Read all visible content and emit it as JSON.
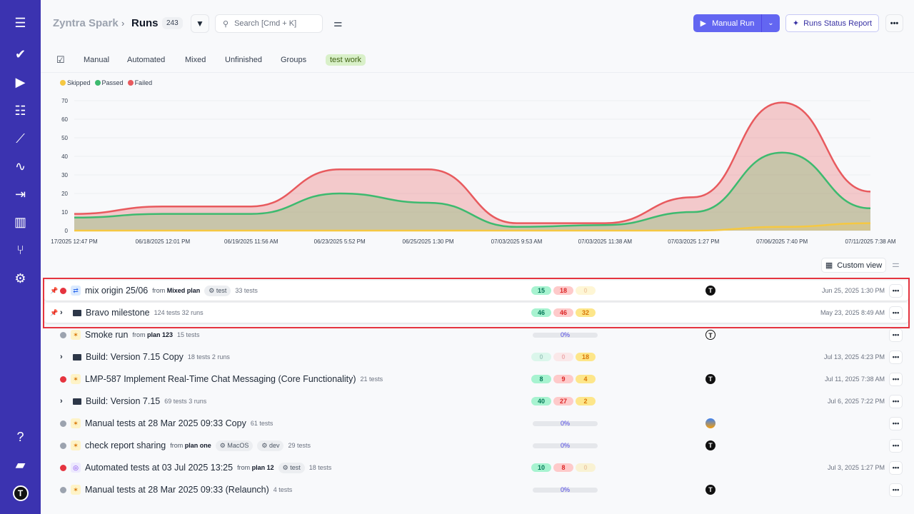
{
  "sidebar": {
    "items": [
      {
        "icon": "menu-icon",
        "g": "☰"
      },
      {
        "icon": "check-icon",
        "g": "✔"
      },
      {
        "icon": "play-circle-icon",
        "g": "▶"
      },
      {
        "icon": "list-check-icon",
        "g": "☷"
      },
      {
        "icon": "steps-icon",
        "g": "⟋"
      },
      {
        "icon": "pulse-icon",
        "g": "∿"
      },
      {
        "icon": "import-icon",
        "g": "⇥"
      },
      {
        "icon": "analytics-icon",
        "g": "▥"
      },
      {
        "icon": "branch-icon",
        "g": "⑂"
      },
      {
        "icon": "gear-icon",
        "g": "⚙"
      }
    ],
    "bottom": [
      {
        "icon": "help-icon",
        "g": "?"
      },
      {
        "icon": "folder-icon",
        "g": "▰"
      },
      {
        "icon": "user-avatar-icon",
        "g": "T"
      }
    ]
  },
  "header": {
    "app": "Zyntra Spark",
    "separator": "›",
    "page": "Runs",
    "count": "243",
    "search_placeholder": "Search [Cmd + K]",
    "manual_run": "Manual Run",
    "status_report": "Runs Status Report",
    "more": "•••"
  },
  "tabs": [
    "Manual",
    "Automated",
    "Mixed",
    "Unfinished",
    "Groups",
    "test work"
  ],
  "custom_view": "Custom view",
  "colors": {
    "skipped": "#f5c842",
    "passed": "#3dba6f",
    "failed": "#e85a5e",
    "accent": "#6366f1",
    "sidebar": "#3b33b0"
  },
  "chart_data": {
    "type": "area",
    "legend": [
      "Skipped",
      "Passed",
      "Failed"
    ],
    "legend_position": "top-left",
    "categories": [
      "17/2025 12:47 PM",
      "06/18/2025 12:01 PM",
      "06/19/2025 11:56 AM",
      "06/23/2025 5:52 PM",
      "06/25/2025 1:30 PM",
      "07/03/2025 9:53 AM",
      "07/03/2025 11:38 AM",
      "07/03/2025 1:27 PM",
      "07/06/2025 7:40 PM",
      "07/11/2025 7:38 AM"
    ],
    "yticks": [
      0,
      10,
      20,
      30,
      40,
      50,
      60,
      70
    ],
    "ylim": [
      0,
      70
    ],
    "grid": true,
    "series": [
      {
        "name": "Skipped",
        "values": [
          0,
          0,
          0,
          0,
          0,
          0,
          0,
          0,
          2,
          4
        ]
      },
      {
        "name": "Passed",
        "values": [
          7,
          9,
          9,
          20,
          15,
          2,
          3,
          10,
          42,
          12
        ]
      },
      {
        "name": "Failed",
        "values": [
          9,
          13,
          13,
          33,
          33,
          4,
          4,
          18,
          69,
          21
        ]
      }
    ]
  },
  "rows": [
    {
      "kind": "run",
      "pinned": true,
      "status": "failed",
      "icon": "mixed",
      "title": "mix origin 25/06",
      "from": "Mixed plan",
      "tags": [
        "test"
      ],
      "meta": "33 tests",
      "stats": [
        15,
        18,
        0
      ],
      "avatar": "T",
      "date": "Jun 25, 2025 1:30 PM"
    },
    {
      "kind": "group",
      "pinned": true,
      "title": "Bravo milestone",
      "meta": "124 tests  32 runs",
      "stats": [
        46,
        46,
        32
      ],
      "date": "May 23, 2025 8:49 AM"
    },
    {
      "kind": "run",
      "status": "pending",
      "icon": "manual",
      "title": "Smoke run",
      "from": "plan 123",
      "tags": [],
      "meta": "15 tests",
      "progress": "0%",
      "avatar": "T"
    },
    {
      "kind": "group",
      "title": "Build: Version 7.15 Copy",
      "meta": "18 tests  2 runs",
      "stats": [
        0,
        0,
        18
      ],
      "date": "Jul 13, 2025 4:23 PM"
    },
    {
      "kind": "run",
      "status": "failed",
      "icon": "manual",
      "title": "LMP-587 Implement Real-Time Chat Messaging (Core Functionality)",
      "tags": [],
      "meta": "21 tests",
      "stats": [
        8,
        9,
        4
      ],
      "avatar": "T",
      "date": "Jul 11, 2025 7:38 AM"
    },
    {
      "kind": "group",
      "title": "Build: Version 7.15",
      "meta": "69 tests  3 runs",
      "stats": [
        40,
        27,
        2
      ],
      "date": "Jul 6, 2025 7:22 PM"
    },
    {
      "kind": "run",
      "status": "pending",
      "icon": "manual",
      "title": "Manual tests at 28 Mar 2025 09:33 Copy",
      "tags": [],
      "meta": "61 tests",
      "progress": "0%",
      "avatar": "img"
    },
    {
      "kind": "run",
      "status": "pending",
      "icon": "manual",
      "title": "check report sharing",
      "from": "plan one",
      "tags": [
        "MacOS",
        "dev"
      ],
      "meta": "29 tests",
      "progress": "0%",
      "avatar": "T"
    },
    {
      "kind": "run",
      "status": "failed",
      "icon": "auto",
      "title": "Automated tests at 03 Jul 2025 13:25",
      "from": "plan 12",
      "tags": [
        "test"
      ],
      "meta": "18 tests",
      "stats": [
        10,
        8,
        0
      ],
      "date": "Jul 3, 2025 1:27 PM"
    },
    {
      "kind": "run",
      "status": "pending",
      "icon": "manual",
      "title": "Manual tests at 28 Mar 2025 09:33 (Relaunch)",
      "tags": [],
      "meta": "4 tests",
      "progress": "0%",
      "avatar": "T"
    }
  ],
  "from_label": "from"
}
